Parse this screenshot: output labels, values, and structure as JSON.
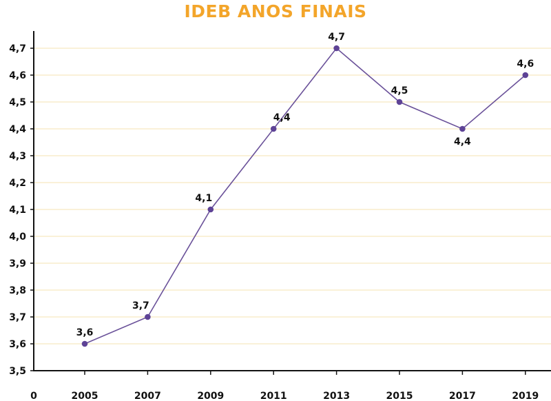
{
  "chart_data": {
    "type": "line",
    "title": "IDEB ANOS FINAIS",
    "x": [
      "2005",
      "2007",
      "2009",
      "2011",
      "2013",
      "2015",
      "2017",
      "2019"
    ],
    "values": [
      3.6,
      3.7,
      4.1,
      4.4,
      4.7,
      4.5,
      4.4,
      4.6
    ],
    "data_labels": [
      "3,6",
      "3,7",
      "4,1",
      "4,4",
      "4,7",
      "4,5",
      "4,4",
      "4,6"
    ],
    "x_origin_label": "0",
    "yticks": [
      3.5,
      3.6,
      3.7,
      3.8,
      3.9,
      4.0,
      4.1,
      4.2,
      4.3,
      4.4,
      4.5,
      4.6,
      4.7
    ],
    "ytick_labels": [
      "3,5",
      "3,6",
      "3,7",
      "3,8",
      "3,9",
      "4,0",
      "4,1",
      "4,2",
      "4,3",
      "4,4",
      "4,5",
      "4,6",
      "4,7"
    ],
    "ylim": [
      3.5,
      4.7
    ],
    "grid": true,
    "colors": {
      "title": "#f3a52a",
      "line": "#6a5199",
      "marker": "#5e4396",
      "grid": "#f5e3b0"
    }
  }
}
